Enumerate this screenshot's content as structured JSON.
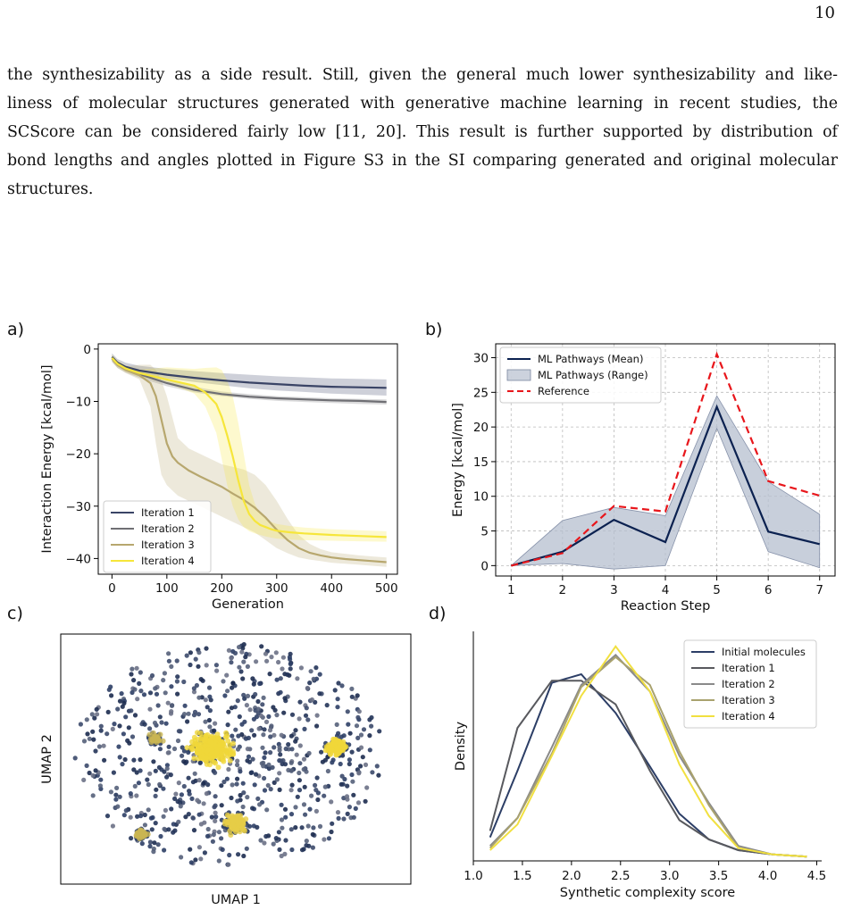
{
  "page_number": "10",
  "paragraph_lines": [
    "the synthesizability as a side result. Still, given the general much lower synthesizability and like-",
    "liness of molecular structures generated with generative machine learning in recent studies, the",
    "SCScore can be considered fairly low [11, 20]. This result is further supported by distribution of",
    "bond lengths and angles plotted in Figure S3 in the SI comparing generated and original molecular",
    "structures."
  ],
  "panel_labels": [
    "a)",
    "b)",
    "c)",
    "d)"
  ],
  "colors": {
    "iter1": "#3a4466",
    "iter2": "#6f6f74",
    "iter3": "#b7a76e",
    "iter4": "#f6e63a",
    "navy": "#0b2150",
    "reference": "#e8161b",
    "range": "#b6bfcf",
    "initial": "#2c3e66"
  },
  "chart_data": [
    {
      "type": "line",
      "panel": "a)",
      "xlabel": "Generation",
      "ylabel": "Interaction Energy [kcal/mol]",
      "xlim": [
        -25,
        520
      ],
      "ylim": [
        -43,
        1
      ],
      "xticks": [
        0,
        100,
        200,
        300,
        400,
        500
      ],
      "yticks": [
        0,
        -10,
        -20,
        -30,
        -40
      ],
      "legend_position": "lower-left",
      "series": [
        {
          "name": "Iteration 1",
          "color": "#3a4466",
          "x": [
            0,
            10,
            25,
            50,
            100,
            150,
            200,
            250,
            300,
            350,
            400,
            450,
            500
          ],
          "y": [
            -1.5,
            -2.6,
            -3.4,
            -4.1,
            -4.9,
            -5.5,
            -6.0,
            -6.4,
            -6.7,
            -7.0,
            -7.2,
            -7.3,
            -7.4
          ],
          "lower": [
            -2.2,
            -3.3,
            -4.1,
            -4.7,
            -5.6,
            -6.3,
            -6.9,
            -7.5,
            -7.9,
            -8.2,
            -8.5,
            -8.7,
            -8.9
          ],
          "upper": [
            -0.8,
            -1.9,
            -2.6,
            -3.2,
            -3.8,
            -4.2,
            -4.6,
            -4.9,
            -5.2,
            -5.4,
            -5.6,
            -5.7,
            -5.8
          ]
        },
        {
          "name": "Iteration 2",
          "color": "#6f6f74",
          "x": [
            0,
            10,
            25,
            50,
            100,
            150,
            200,
            250,
            300,
            350,
            400,
            450,
            500
          ],
          "y": [
            -1.8,
            -3.0,
            -3.9,
            -4.8,
            -6.5,
            -7.8,
            -8.6,
            -9.1,
            -9.4,
            -9.6,
            -9.8,
            -9.9,
            -10.1
          ],
          "lower": [
            -2.5,
            -3.6,
            -4.5,
            -5.5,
            -7.1,
            -8.3,
            -9.0,
            -9.5,
            -9.9,
            -10.1,
            -10.3,
            -10.5,
            -10.6
          ],
          "upper": [
            -1.2,
            -2.3,
            -3.3,
            -4.2,
            -5.9,
            -7.2,
            -8.1,
            -8.6,
            -9.0,
            -9.2,
            -9.4,
            -9.5,
            -9.6
          ]
        },
        {
          "name": "Iteration 3",
          "color": "#b7a76e",
          "x": [
            0,
            10,
            25,
            50,
            70,
            80,
            90,
            100,
            110,
            120,
            140,
            160,
            180,
            200,
            220,
            240,
            260,
            280,
            300,
            320,
            340,
            360,
            380,
            400,
            425,
            450,
            475,
            500
          ],
          "y": [
            -1.8,
            -3.0,
            -4.0,
            -5.0,
            -6.5,
            -9.0,
            -13.5,
            -18.0,
            -20.5,
            -21.7,
            -23.2,
            -24.3,
            -25.3,
            -26.3,
            -27.6,
            -28.8,
            -30.3,
            -32.2,
            -34.5,
            -36.5,
            -38.0,
            -38.9,
            -39.4,
            -39.8,
            -40.1,
            -40.3,
            -40.5,
            -40.7
          ],
          "lower": [
            -2.4,
            -3.6,
            -4.6,
            -5.8,
            -11.0,
            -18.0,
            -24.0,
            -26.0,
            -27.0,
            -28.0,
            -29.0,
            -30.0,
            -31.0,
            -32.0,
            -33.0,
            -34.0,
            -35.0,
            -36.5,
            -38.0,
            -39.0,
            -39.8,
            -40.2,
            -40.5,
            -40.8,
            -41.0,
            -41.2,
            -41.4,
            -41.6
          ],
          "upper": [
            -1.2,
            -2.4,
            -3.3,
            -3.0,
            -3.0,
            -4.0,
            -6.0,
            -9.0,
            -13.0,
            -17.0,
            -19.0,
            -20.0,
            -21.0,
            -22.0,
            -22.5,
            -23.0,
            -24.0,
            -26.0,
            -29.0,
            -32.5,
            -35.5,
            -37.2,
            -38.2,
            -38.8,
            -39.1,
            -39.4,
            -39.6,
            -39.8
          ]
        },
        {
          "name": "Iteration 4",
          "color": "#f6e63a",
          "x": [
            0,
            10,
            25,
            50,
            100,
            150,
            170,
            190,
            200,
            210,
            220,
            230,
            240,
            250,
            260,
            270,
            280,
            290,
            300,
            325,
            350,
            400,
            450,
            500
          ],
          "y": [
            -1.7,
            -2.8,
            -3.7,
            -4.6,
            -5.8,
            -7.0,
            -8.3,
            -10.5,
            -13.0,
            -16.5,
            -20.5,
            -25.0,
            -29.0,
            -31.5,
            -32.8,
            -33.6,
            -34.0,
            -34.4,
            -34.7,
            -35.0,
            -35.2,
            -35.5,
            -35.7,
            -35.9
          ],
          "lower": [
            -2.3,
            -3.4,
            -4.3,
            -5.3,
            -6.5,
            -8.5,
            -11.0,
            -16.0,
            -21.0,
            -26.0,
            -30.0,
            -32.5,
            -34.0,
            -34.8,
            -35.2,
            -35.5,
            -35.8,
            -36.0,
            -36.2,
            -36.4,
            -36.5,
            -36.6,
            -36.7,
            -36.8
          ],
          "upper": [
            -1.1,
            -2.2,
            -3.1,
            -3.9,
            -3.5,
            -3.8,
            -3.6,
            -3.5,
            -4.0,
            -6.0,
            -9.0,
            -14.0,
            -20.0,
            -26.0,
            -29.5,
            -31.5,
            -32.5,
            -33.0,
            -33.4,
            -33.8,
            -34.1,
            -34.4,
            -34.6,
            -34.8
          ]
        }
      ]
    },
    {
      "type": "line",
      "panel": "b)",
      "xlabel": "Reaction Step",
      "ylabel": "Energy [kcal/mol]",
      "xlim": [
        0.7,
        7.3
      ],
      "ylim": [
        -1.5,
        32
      ],
      "xticks": [
        1,
        2,
        3,
        4,
        5,
        6,
        7
      ],
      "yticks": [
        0,
        5,
        10,
        15,
        20,
        25,
        30
      ],
      "grid": true,
      "legend_position": "top-left",
      "series": [
        {
          "name": "ML Pathways (Mean)",
          "color": "#0b2150",
          "style": "solid",
          "x": [
            1,
            2,
            3,
            4,
            5,
            6,
            7
          ],
          "y": [
            0,
            2.0,
            6.6,
            3.4,
            22.9,
            4.9,
            3.1
          ]
        },
        {
          "name": "ML Pathways (Range)",
          "color": "#b6bfcf",
          "style": "band",
          "x": [
            1,
            2,
            3,
            4,
            5,
            6,
            7
          ],
          "lower": [
            0,
            0.3,
            -0.5,
            0,
            19.8,
            2.0,
            -0.3
          ],
          "upper": [
            0,
            6.5,
            8.4,
            7.2,
            24.5,
            12.1,
            7.4
          ]
        },
        {
          "name": "Reference",
          "color": "#e8161b",
          "style": "dashed",
          "x": [
            1,
            2,
            3,
            4,
            5,
            6,
            7
          ],
          "y": [
            0,
            1.8,
            8.6,
            7.8,
            30.5,
            12.2,
            10.1
          ]
        }
      ]
    },
    {
      "type": "scatter",
      "panel": "c)",
      "xlabel": "UMAP 1",
      "ylabel": "UMAP 2",
      "ticks": false,
      "clusters": [
        {
          "name": "central cluster",
          "x": 0.43,
          "y": 0.46,
          "size": "large",
          "color": "#f0d73a"
        },
        {
          "name": "right cluster",
          "x": 0.79,
          "y": 0.45,
          "size": "medium",
          "color": "#f0d73a"
        },
        {
          "name": "lower cluster",
          "x": 0.5,
          "y": 0.76,
          "size": "medium",
          "color": "#e6cd47"
        },
        {
          "name": "left cluster",
          "x": 0.27,
          "y": 0.42,
          "size": "small",
          "color": "#c9b552"
        },
        {
          "name": "lower-left cluster",
          "x": 0.23,
          "y": 0.8,
          "size": "small",
          "color": "#c9b552"
        }
      ]
    },
    {
      "type": "line",
      "panel": "d)",
      "xlabel": "Synthetic complexity score",
      "ylabel": "Density",
      "xlim": [
        1.0,
        4.55
      ],
      "ylim": [
        0,
        1.07
      ],
      "xticks": [
        1.0,
        1.5,
        2.0,
        2.5,
        3.0,
        3.5,
        4.0,
        4.5
      ],
      "legend_position": "top-right",
      "x": [
        1.17,
        1.45,
        1.8,
        2.1,
        2.45,
        2.8,
        3.1,
        3.4,
        3.7,
        4.05,
        4.4
      ],
      "series": [
        {
          "name": "Initial molecules",
          "color": "#2c3e66",
          "values": [
            0.11,
            0.42,
            0.83,
            0.87,
            0.69,
            0.44,
            0.22,
            0.1,
            0.05,
            0.03,
            0.02
          ]
        },
        {
          "name": "Iteration 1",
          "color": "#58595e",
          "values": [
            0.14,
            0.62,
            0.84,
            0.84,
            0.73,
            0.42,
            0.19,
            0.1,
            0.05,
            0.03,
            0.02
          ]
        },
        {
          "name": "Iteration 2",
          "color": "#8a8a8a",
          "values": [
            0.07,
            0.2,
            0.53,
            0.82,
            0.96,
            0.79,
            0.49,
            0.27,
            0.07,
            0.03,
            0.02
          ]
        },
        {
          "name": "Iteration 3",
          "color": "#a9a26e",
          "values": [
            0.06,
            0.2,
            0.5,
            0.81,
            0.95,
            0.82,
            0.51,
            0.26,
            0.06,
            0.03,
            0.02
          ]
        },
        {
          "name": "Iteration 4",
          "color": "#f1e040",
          "values": [
            0.05,
            0.17,
            0.49,
            0.77,
            1.0,
            0.79,
            0.45,
            0.21,
            0.06,
            0.03,
            0.02
          ]
        }
      ]
    }
  ]
}
